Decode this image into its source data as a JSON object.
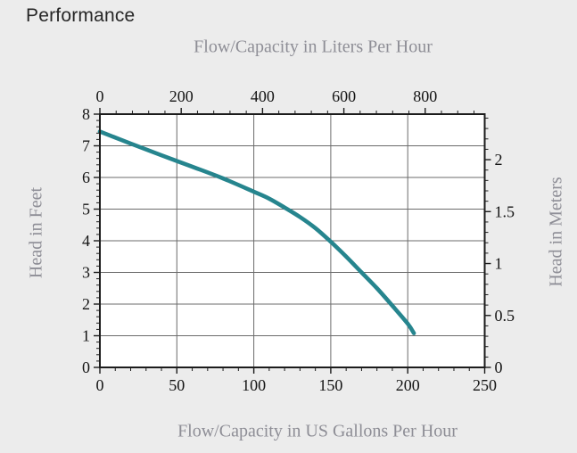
{
  "page": {
    "title": "Performance"
  },
  "colors": {
    "page_bg": "#ececec",
    "plot_bg": "#ffffff",
    "plot_border": "#1c1c1c",
    "grid": "#6b6b6b",
    "tick": "#1c1c1c",
    "tick_label": "#141414",
    "axis_title": "#8e8e96",
    "title": "#262626",
    "curve": "#26858e"
  },
  "chart_data": {
    "type": "line",
    "title": "Performance",
    "grid": true,
    "legend": "none",
    "axes": {
      "top": {
        "label": "Flow/Capacity in Liters Per Hour",
        "min": 0,
        "max": 946.35,
        "majors": [
          0,
          200,
          400,
          600,
          800
        ],
        "major_labels": [
          "0",
          "200",
          "400",
          "600",
          "800"
        ],
        "minor_step": 40
      },
      "bottom": {
        "label": "Flow/Capacity in US Gallons Per Hour",
        "min": 0,
        "max": 250,
        "majors": [
          0,
          50,
          100,
          150,
          200,
          250
        ],
        "major_labels": [
          "0",
          "50",
          "100",
          "150",
          "200",
          "250"
        ],
        "minor_step": 10
      },
      "left": {
        "label": "Head in Feet",
        "min": 0,
        "max": 8,
        "majors": [
          0,
          1,
          2,
          3,
          4,
          5,
          6,
          7,
          8
        ],
        "major_labels": [
          "0",
          "1",
          "2",
          "3",
          "4",
          "5",
          "6",
          "7",
          "8"
        ],
        "minor_step": 0.2
      },
      "right": {
        "label": "Head in Meters",
        "min": 0,
        "max": 2.4384,
        "majors": [
          0,
          0.5,
          1,
          1.5,
          2
        ],
        "major_labels": [
          "0",
          "0.5",
          "1",
          "1.5",
          "2"
        ],
        "minor_step": 0.1
      }
    },
    "series": [
      {
        "name": "Head vs Flow performance curve",
        "color": "#26858e",
        "x_axis": "bottom",
        "y_axis": "left",
        "points_gal_ft": [
          [
            0,
            7.45
          ],
          [
            20,
            7.07
          ],
          [
            40,
            6.7
          ],
          [
            60,
            6.34
          ],
          [
            80,
            5.97
          ],
          [
            100,
            5.55
          ],
          [
            110,
            5.33
          ],
          [
            120,
            5.05
          ],
          [
            130,
            4.75
          ],
          [
            140,
            4.4
          ],
          [
            150,
            3.97
          ],
          [
            160,
            3.5
          ],
          [
            170,
            3.0
          ],
          [
            180,
            2.5
          ],
          [
            190,
            1.95
          ],
          [
            200,
            1.38
          ],
          [
            204,
            1.08
          ]
        ]
      }
    ]
  }
}
